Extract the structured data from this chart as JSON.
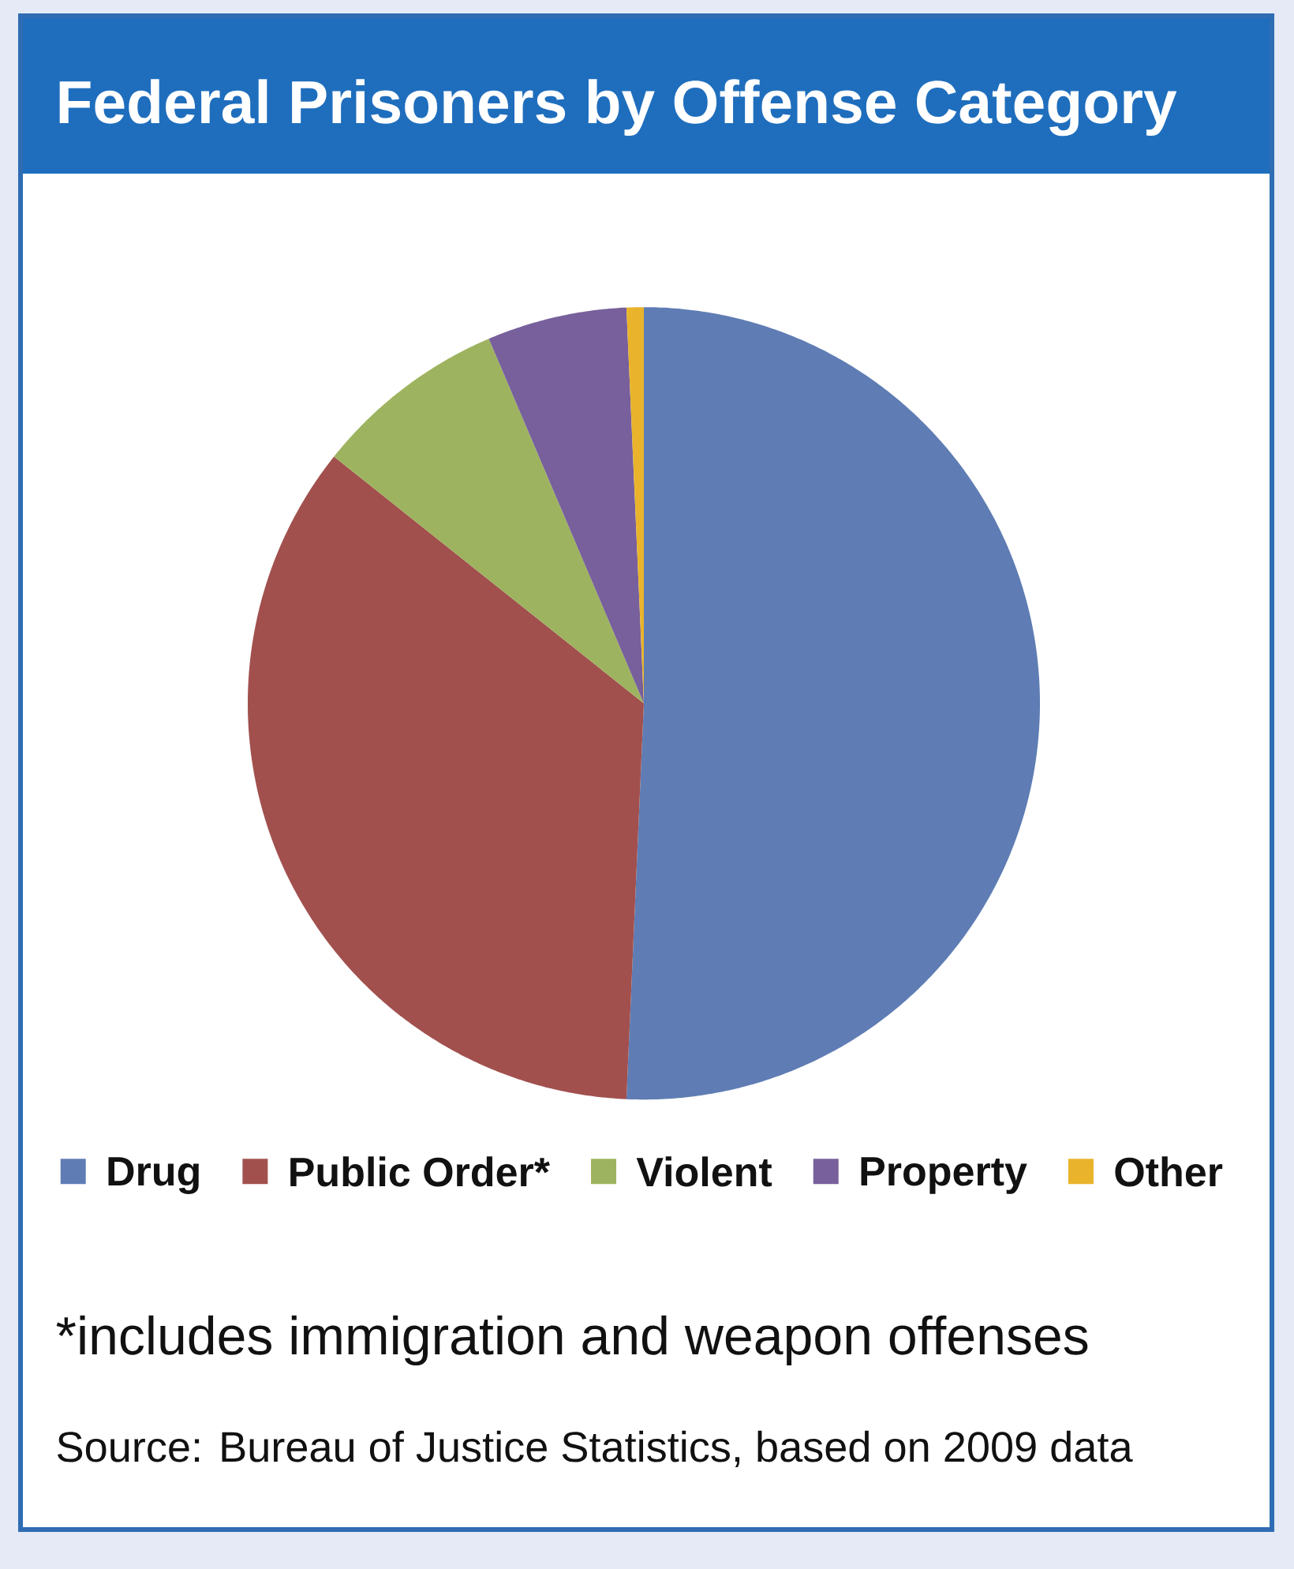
{
  "chart_data": {
    "type": "pie",
    "title": "Federal Prisoners by Offense Category",
    "categories": [
      "Drug",
      "Public Order*",
      "Violent",
      "Property",
      "Other"
    ],
    "values": [
      50.7,
      35.0,
      7.9,
      5.7,
      0.7
    ],
    "colors": [
      "#5f7db4",
      "#a1504e",
      "#9eb35f",
      "#77609b",
      "#e9b42b"
    ],
    "legend": "bottom",
    "annotations": [
      "*includes immigration and weapon offenses",
      "Source: Bureau of Justice Statistics, based on 2009 data"
    ]
  }
}
